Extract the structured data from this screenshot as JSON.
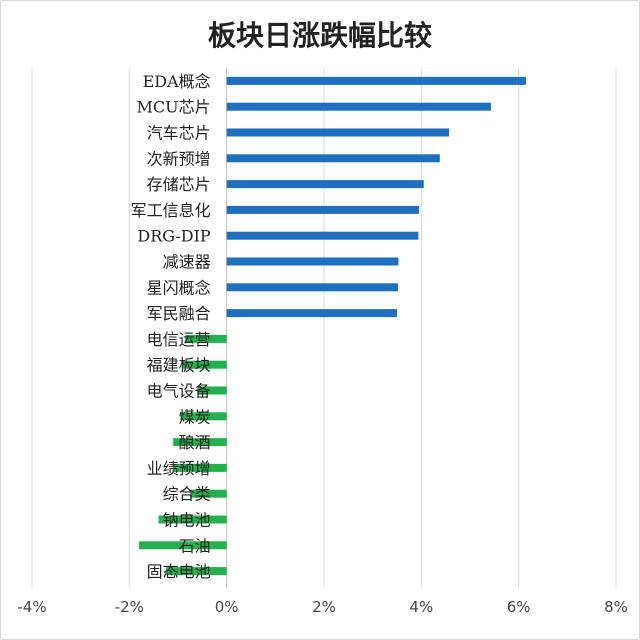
{
  "chart_data": {
    "type": "bar",
    "orientation": "horizontal",
    "title": "板块日涨跌幅比较",
    "xlabel": "",
    "ylabel": "",
    "xlim": [
      -4,
      8
    ],
    "xticks": [
      -4,
      -2,
      0,
      2,
      4,
      6,
      8
    ],
    "xtick_labels": [
      "-4%",
      "-2%",
      "0%",
      "2%",
      "4%",
      "6%",
      "8%"
    ],
    "grid": true,
    "legend": "none",
    "colors": {
      "positive": "#1f6fbf",
      "negative": "#22b14c"
    },
    "categories": [
      "EDA概念",
      "MCU芯片",
      "汽车芯片",
      "次新预增",
      "存储芯片",
      "军工信息化",
      "DRG-DIP",
      "减速器",
      "星闪概念",
      "军民融合",
      "电信运营",
      "福建板块",
      "电气设备",
      "煤炭",
      "酿酒",
      "业绩预增",
      "综合类",
      "钠电池",
      "石油",
      "固态电池"
    ],
    "values": [
      6.15,
      5.43,
      4.57,
      4.38,
      4.05,
      3.95,
      3.94,
      3.53,
      3.52,
      3.5,
      -0.85,
      -0.9,
      -0.6,
      -0.95,
      -1.1,
      -1.1,
      -0.75,
      -1.4,
      -1.8,
      -1.25
    ]
  }
}
